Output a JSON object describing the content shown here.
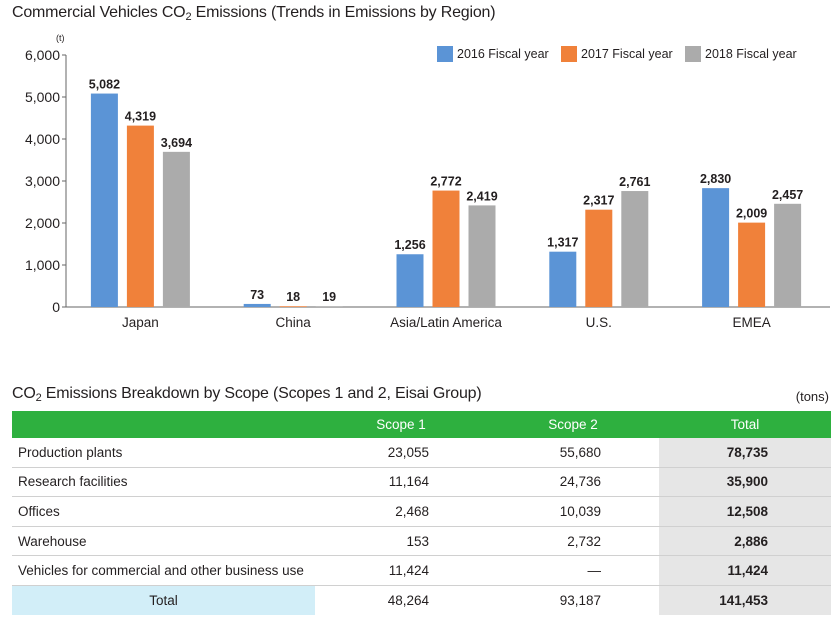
{
  "chart_data": {
    "type": "bar",
    "title_main": "Commercial Vehicles CO",
    "title_sub": "2",
    "title_rest": " Emissions (Trends in Emissions by Region)",
    "unit": "(t)",
    "categories": [
      "Japan",
      "China",
      "Asia/Latin America",
      "U.S.",
      "EMEA"
    ],
    "series": [
      {
        "name": "2016 Fiscal year",
        "color": "#5b94d6",
        "values": [
          5082,
          73,
          1256,
          1317,
          2830
        ],
        "labels": [
          "5,082",
          "73",
          "1,256",
          "1,317",
          "2,830"
        ]
      },
      {
        "name": "2017 Fiscal year",
        "color": "#f0813a",
        "values": [
          4319,
          18,
          2772,
          2317,
          2009
        ],
        "labels": [
          "4,319",
          "18",
          "2,772",
          "2,317",
          "2,009"
        ]
      },
      {
        "name": "2018 Fiscal year",
        "color": "#ababab",
        "values": [
          3694,
          19,
          2419,
          2761,
          2457
        ],
        "labels": [
          "3,694",
          "19",
          "2,419",
          "2,761",
          "2,457"
        ]
      }
    ],
    "ylim": [
      0,
      6000
    ],
    "yticks": [
      0,
      1000,
      2000,
      3000,
      4000,
      5000,
      6000
    ],
    "ytick_labels": [
      "0",
      "1,000",
      "2,000",
      "3,000",
      "4,000",
      "5,000",
      "6,000"
    ],
    "legend": "top-right",
    "grid": false
  },
  "table": {
    "title_main": "CO",
    "title_sub": "2",
    "title_rest": " Emissions Breakdown by Scope (Scopes 1 and 2, Eisai Group)",
    "units": "(tons)",
    "headers": [
      "",
      "Scope 1",
      "Scope 2",
      "Total"
    ],
    "rows": [
      {
        "label": "Production plants",
        "scope1": "23,055",
        "scope2": "55,680",
        "total": "78,735"
      },
      {
        "label": "Research facilities",
        "scope1": "11,164",
        "scope2": "24,736",
        "total": "35,900"
      },
      {
        "label": "Offices",
        "scope1": "2,468",
        "scope2": "10,039",
        "total": "12,508"
      },
      {
        "label": "Warehouse",
        "scope1": "153",
        "scope2": "2,732",
        "total": "2,886"
      },
      {
        "label": "Vehicles for commercial and other business use",
        "scope1": "11,424",
        "scope2": "—",
        "total": "11,424"
      },
      {
        "label": "Total",
        "scope1": "48,264",
        "scope2": "93,187",
        "total": "141,453"
      }
    ],
    "header_color": "#2eb03f",
    "total_col_color": "#e6e6e6",
    "total_label_color": "#d2eef8"
  }
}
